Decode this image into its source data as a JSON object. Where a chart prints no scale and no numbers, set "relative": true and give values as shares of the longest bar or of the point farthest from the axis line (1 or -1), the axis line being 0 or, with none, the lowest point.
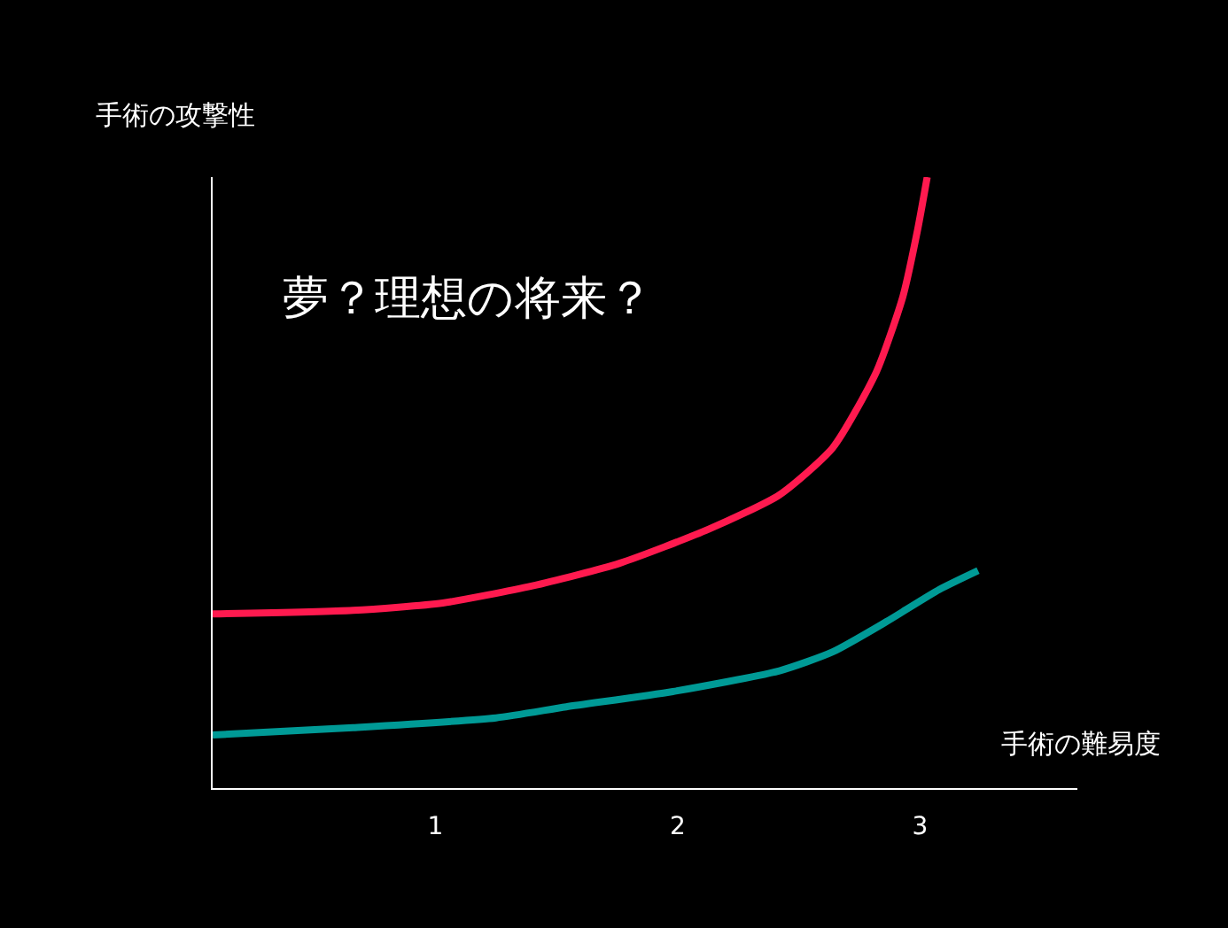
{
  "chart_data": {
    "type": "line",
    "title": "夢？理想の将来？",
    "xlabel": "手術の難易度",
    "ylabel": "手術の攻撃性",
    "relative": true,
    "xlim": [
      0.08,
      3.65
    ],
    "xticks": [
      1,
      2,
      3
    ],
    "grid": false,
    "marker": "none",
    "line_style": "solid",
    "series": [
      {
        "color": "#ff1a4f",
        "x": [
          0.08,
          0.66,
          1.03,
          1.4,
          1.76,
          2.13,
          2.42,
          2.64,
          2.82,
          2.93,
          2.99,
          3.03
        ],
        "values": [
          0.285,
          0.291,
          0.303,
          0.331,
          0.368,
          0.424,
          0.48,
          0.557,
          0.681,
          0.805,
          0.913,
          1
        ]
      },
      {
        "color": "#009a96",
        "x": [
          0.08,
          0.66,
          1.25,
          1.54,
          1.98,
          2.42,
          2.64,
          2.86,
          3.08,
          3.24
        ],
        "values": [
          0.087,
          0.099,
          0.115,
          0.133,
          0.158,
          0.192,
          0.223,
          0.272,
          0.325,
          0.356
        ]
      }
    ]
  }
}
